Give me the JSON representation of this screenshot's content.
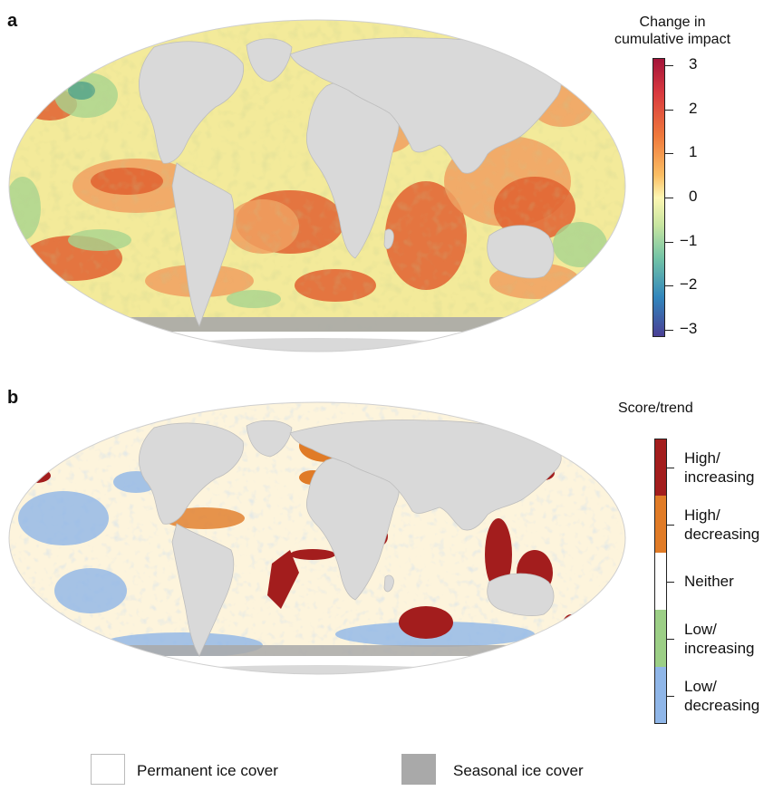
{
  "panel_a": {
    "letter": "a",
    "legend_title_line1": "Change in",
    "legend_title_line2": "cumulative impact",
    "ticks": [
      "3",
      "2",
      "1",
      "0",
      "−1",
      "−2",
      "−3"
    ],
    "scale_max": 3,
    "scale_min": -3,
    "colors": {
      "ocean_base": "#f3ea9a",
      "warm": "#f0a060",
      "hot": "#e06030",
      "cool": "#a8d58f",
      "cold": "#4fa08a",
      "land": "#d9d9d9"
    }
  },
  "panel_b": {
    "letter": "b",
    "legend_title": "Score/trend",
    "categories": [
      {
        "line1": "High/",
        "line2": "increasing",
        "color": "#a31d1d"
      },
      {
        "line1": "High/",
        "line2": "decreasing",
        "color": "#e07b27"
      },
      {
        "line1": "Neither",
        "line2": "",
        "color": "#ffffff"
      },
      {
        "line1": "Low/",
        "line2": "increasing",
        "color": "#9ccf86"
      },
      {
        "line1": "Low/",
        "line2": "decreasing",
        "color": "#8fb6e8"
      }
    ],
    "colors": {
      "ocean_base": "#fdf4dc",
      "land": "#d9d9d9"
    }
  },
  "ice_legend": {
    "permanent": {
      "label": "Permanent ice cover",
      "color": "#ffffff"
    },
    "seasonal": {
      "label": "Seasonal ice cover",
      "color": "#a9a9a9"
    }
  }
}
